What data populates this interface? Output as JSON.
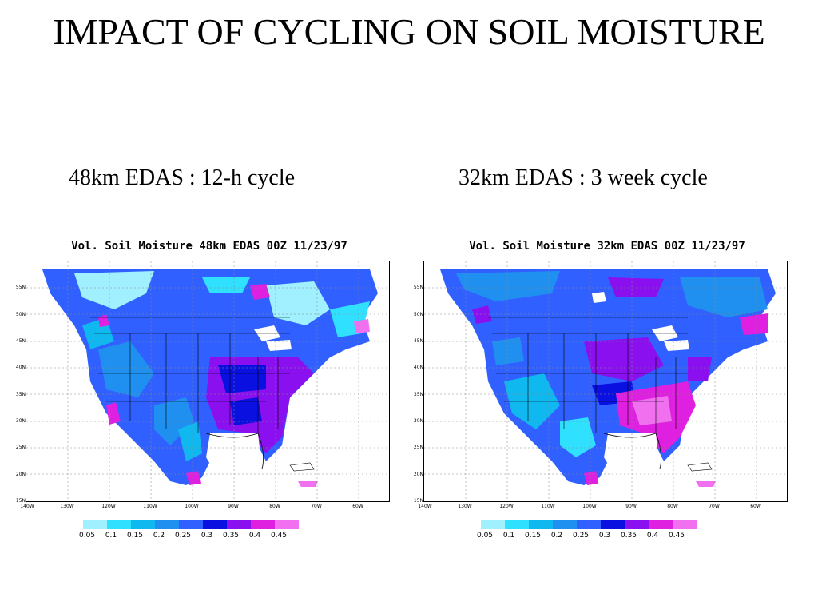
{
  "title": "IMPACT OF CYCLING ON SOIL MOISTURE",
  "panels": [
    {
      "subtitle": "48km EDAS : 12-h cycle",
      "map_title": "Vol. Soil Moisture 48km EDAS 00Z 11/23/97",
      "dominant": "west-blue, east-purple"
    },
    {
      "subtitle": "32km EDAS : 3 week cycle",
      "map_title": "Vol. Soil Moisture 32km EDAS 00Z 11/23/97",
      "dominant": "west-blue, southeast-magenta"
    }
  ],
  "lat_labels": [
    "55N",
    "50N",
    "45N",
    "40N",
    "35N",
    "30N",
    "25N",
    "20N",
    "15N"
  ],
  "lon_labels": [
    "140W",
    "130W",
    "120W",
    "110W",
    "100W",
    "90W",
    "80W",
    "70W",
    "60W"
  ],
  "legend": {
    "values": [
      "0.05",
      "0.1",
      "0.15",
      "0.2",
      "0.25",
      "0.3",
      "0.35",
      "0.4",
      "0.45"
    ],
    "colors": [
      "#a0f0ff",
      "#30e0ff",
      "#10b8f0",
      "#2090f0",
      "#3060ff",
      "#0a10e0",
      "#8a10f0",
      "#e020e0",
      "#f070f0"
    ]
  }
}
